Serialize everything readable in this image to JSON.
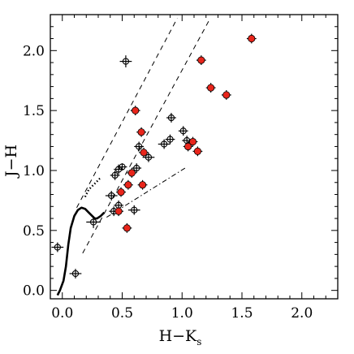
{
  "chart_data": {
    "type": "scatter",
    "xlabel": "H−K",
    "xlabel_sub": "s",
    "ylabel": "J−H",
    "xlim": [
      -0.1,
      2.3
    ],
    "ylim": [
      -0.07,
      2.3
    ],
    "xticks": [
      0.0,
      0.5,
      1.0,
      1.5,
      2.0
    ],
    "xtick_labels": [
      "0.0",
      "0.5",
      "1.0",
      "1.5",
      "2.0"
    ],
    "yticks": [
      0.0,
      0.5,
      1.0,
      1.5,
      2.0
    ],
    "ytick_labels": [
      "0.0",
      "0.5",
      "1.0",
      "1.5",
      "2.0"
    ],
    "grid": false,
    "legend": "none",
    "colors": {
      "axis": "#000000",
      "highlight": "#e8251b",
      "marker": "#000000"
    },
    "series": [
      {
        "marker": "black-open-circle-with-errorbars",
        "points": [
          {
            "x": -0.04,
            "y": 0.36,
            "xerr": 0.05,
            "yerr": 0.04
          },
          {
            "x": 0.11,
            "y": 0.14,
            "xerr": 0.05,
            "yerr": 0.04
          },
          {
            "x": 0.26,
            "y": 0.57,
            "xerr": 0.06,
            "yerr": 0.05
          },
          {
            "x": 0.41,
            "y": 0.79,
            "xerr": 0.05,
            "yerr": 0.04
          },
          {
            "x": 0.44,
            "y": 0.96,
            "xerr": 0.04,
            "yerr": 0.04
          },
          {
            "x": 0.47,
            "y": 1.01,
            "xerr": 0.04,
            "yerr": 0.04
          },
          {
            "x": 0.5,
            "y": 1.03,
            "xerr": 0.04,
            "yerr": 0.03
          },
          {
            "x": 0.47,
            "y": 0.71,
            "xerr": 0.04,
            "yerr": 0.04
          },
          {
            "x": 0.43,
            "y": 0.66,
            "xerr": 0.04,
            "yerr": 0.04
          },
          {
            "x": 0.6,
            "y": 0.67,
            "xerr": 0.05,
            "yerr": 0.04
          },
          {
            "x": 0.53,
            "y": 1.91,
            "xerr": 0.05,
            "yerr": 0.05
          },
          {
            "x": 0.62,
            "y": 1.02,
            "xerr": 0.04,
            "yerr": 0.04
          },
          {
            "x": 0.64,
            "y": 1.2,
            "xerr": 0.04,
            "yerr": 0.04
          },
          {
            "x": 0.72,
            "y": 1.11,
            "xerr": 0.05,
            "yerr": 0.04
          },
          {
            "x": 0.85,
            "y": 1.22,
            "xerr": 0.05,
            "yerr": 0.04
          },
          {
            "x": 0.9,
            "y": 1.26,
            "xerr": 0.04,
            "yerr": 0.04
          },
          {
            "x": 0.91,
            "y": 1.44,
            "xerr": 0.04,
            "yerr": 0.04
          },
          {
            "x": 1.01,
            "y": 1.33,
            "xerr": 0.04,
            "yerr": 0.04
          },
          {
            "x": 1.04,
            "y": 1.25,
            "xerr": 0.04,
            "yerr": 0.04
          }
        ]
      },
      {
        "marker": "red-filled-circle-with-errorbars",
        "points": [
          {
            "x": 0.47,
            "y": 0.66,
            "xerr": 0.04,
            "yerr": 0.04
          },
          {
            "x": 0.54,
            "y": 0.52,
            "xerr": 0.04,
            "yerr": 0.04
          },
          {
            "x": 0.49,
            "y": 0.82,
            "xerr": 0.04,
            "yerr": 0.04
          },
          {
            "x": 0.55,
            "y": 0.88,
            "xerr": 0.04,
            "yerr": 0.04
          },
          {
            "x": 0.58,
            "y": 0.98,
            "xerr": 0.04,
            "yerr": 0.04
          },
          {
            "x": 0.67,
            "y": 0.88,
            "xerr": 0.04,
            "yerr": 0.04
          },
          {
            "x": 0.61,
            "y": 1.5,
            "xerr": 0.04,
            "yerr": 0.04
          },
          {
            "x": 0.66,
            "y": 1.32,
            "xerr": 0.04,
            "yerr": 0.04
          },
          {
            "x": 0.68,
            "y": 1.15,
            "xerr": 0.04,
            "yerr": 0.04
          },
          {
            "x": 1.05,
            "y": 1.2,
            "xerr": 0.04,
            "yerr": 0.04
          },
          {
            "x": 1.09,
            "y": 1.24,
            "xerr": 0.04,
            "yerr": 0.04
          },
          {
            "x": 1.13,
            "y": 1.16,
            "xerr": 0.04,
            "yerr": 0.04
          },
          {
            "x": 1.16,
            "y": 1.92,
            "xerr": 0.04,
            "yerr": 0.04
          },
          {
            "x": 1.24,
            "y": 1.69,
            "xerr": 0.04,
            "yerr": 0.04
          },
          {
            "x": 1.37,
            "y": 1.63,
            "xerr": 0.04,
            "yerr": 0.04
          },
          {
            "x": 1.58,
            "y": 2.1,
            "xerr": 0.04,
            "yerr": 0.04
          }
        ]
      }
    ],
    "curves": {
      "giant_branch": [
        [
          0.19,
          0.78
        ],
        [
          0.22,
          0.84
        ],
        [
          0.25,
          0.87
        ],
        [
          0.28,
          0.9
        ],
        [
          0.31,
          0.93
        ],
        [
          0.33,
          0.94
        ]
      ],
      "dwarf_locus": [
        [
          -0.04,
          -0.04
        ],
        [
          -0.02,
          0.0
        ],
        [
          0.01,
          0.08
        ],
        [
          0.03,
          0.2
        ],
        [
          0.05,
          0.38
        ],
        [
          0.07,
          0.52
        ],
        [
          0.1,
          0.62
        ],
        [
          0.13,
          0.67
        ],
        [
          0.16,
          0.69
        ],
        [
          0.19,
          0.68
        ],
        [
          0.22,
          0.65
        ],
        [
          0.25,
          0.62
        ],
        [
          0.27,
          0.6
        ],
        [
          0.29,
          0.6
        ],
        [
          0.32,
          0.62
        ],
        [
          0.35,
          0.65
        ]
      ],
      "reddening_left": [
        [
          0.12,
          0.69
        ],
        [
          0.96,
          2.27
        ]
      ],
      "reddening_right": [
        [
          0.17,
          0.31
        ],
        [
          1.23,
          2.26
        ]
      ],
      "ctts_locus": [
        [
          0.37,
          0.61
        ],
        [
          1.04,
          1.03
        ]
      ]
    }
  }
}
